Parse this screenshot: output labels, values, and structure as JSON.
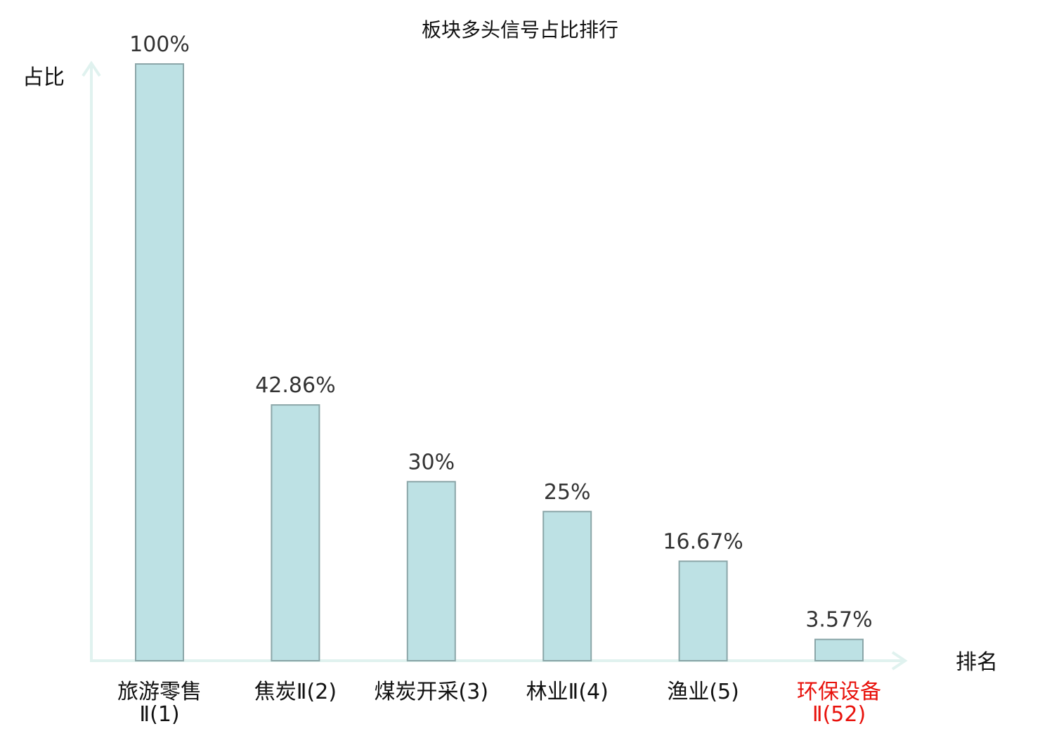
{
  "chart_data": {
    "type": "bar",
    "title": "板块多头信号占比排行",
    "xlabel": "排名",
    "ylabel": "占比",
    "ylim": [
      0,
      100
    ],
    "grid": false,
    "categories": [
      {
        "line1": "旅游零售",
        "line2": "Ⅱ(1)",
        "highlight": false
      },
      {
        "line1": "焦炭Ⅱ(2)",
        "line2": "",
        "highlight": false
      },
      {
        "line1": "煤炭开采(3)",
        "line2": "",
        "highlight": false
      },
      {
        "line1": "林业Ⅱ(4)",
        "line2": "",
        "highlight": false
      },
      {
        "line1": "渔业(5)",
        "line2": "",
        "highlight": false
      },
      {
        "line1": "环保设备",
        "line2": "Ⅱ(52)",
        "highlight": true
      }
    ],
    "values": [
      100,
      42.86,
      30,
      25,
      16.67,
      3.57
    ],
    "value_labels": [
      "100%",
      "42.86%",
      "30%",
      "25%",
      "16.67%",
      "3.57%"
    ],
    "colors": {
      "bar_fill": "#bde1e4",
      "bar_stroke": "#8ba6a8",
      "axis": "#e0f2ef",
      "highlight_text": "#e8120c"
    }
  }
}
